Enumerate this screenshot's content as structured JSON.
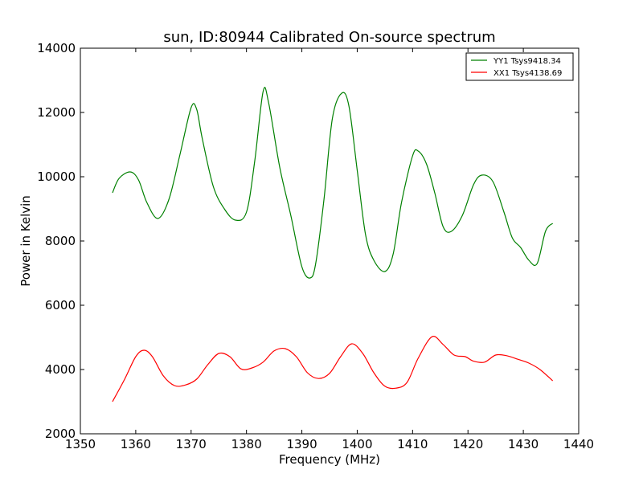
{
  "chart_data": {
    "type": "line",
    "title": "sun, ID:80944 Calibrated On-source spectrum",
    "xlabel": "Frequency (MHz)",
    "ylabel": "Power in Kelvin",
    "xlim": [
      1350,
      1440
    ],
    "ylim": [
      2000,
      14000
    ],
    "xticks": [
      1350,
      1360,
      1370,
      1380,
      1390,
      1400,
      1410,
      1420,
      1430,
      1440
    ],
    "yticks": [
      2000,
      4000,
      6000,
      8000,
      10000,
      12000,
      14000
    ],
    "xtick_labels": [
      "1350",
      "1360",
      "1370",
      "1380",
      "1390",
      "1400",
      "1410",
      "1420",
      "1430",
      "1440"
    ],
    "ytick_labels": [
      "2000",
      "4000",
      "6000",
      "8000",
      "10000",
      "12000",
      "14000"
    ],
    "grid": false,
    "legend_position": "top-right",
    "series": [
      {
        "name": "YY1 Tsys9418.34",
        "color": "#008000",
        "x": [
          1355.8,
          1357,
          1359,
          1360.5,
          1362,
          1364,
          1366,
          1368,
          1370,
          1371,
          1372,
          1374,
          1376,
          1378,
          1380,
          1381.5,
          1383,
          1384,
          1386,
          1388,
          1390,
          1391.5,
          1392.5,
          1394,
          1395.5,
          1397.2,
          1398.5,
          1400,
          1401.5,
          1403,
          1405,
          1406.5,
          1408,
          1410,
          1411,
          1412.5,
          1414,
          1415.5,
          1417,
          1419,
          1421,
          1422.5,
          1424.5,
          1426.5,
          1428,
          1429.5,
          1431,
          1432.5,
          1434,
          1435.3
        ],
        "y": [
          9500,
          9950,
          10150,
          9900,
          9200,
          8700,
          9300,
          10700,
          12150,
          12100,
          11200,
          9700,
          9000,
          8650,
          8900,
          10500,
          12650,
          12300,
          10300,
          8800,
          7200,
          6850,
          7300,
          9300,
          11800,
          12600,
          12200,
          10200,
          8200,
          7400,
          7050,
          7600,
          9200,
          10650,
          10800,
          10400,
          9500,
          8450,
          8300,
          8800,
          9750,
          10050,
          9850,
          8900,
          8100,
          7800,
          7400,
          7300,
          8300,
          8550
        ]
      },
      {
        "name": "XX1 Tsys4138.69",
        "color": "#ff0000",
        "x": [
          1355.8,
          1358,
          1360,
          1361.5,
          1363,
          1365,
          1367,
          1369,
          1371,
          1373,
          1375,
          1377,
          1379,
          1381,
          1383,
          1385,
          1387,
          1389,
          1391,
          1393,
          1395,
          1397,
          1399,
          1401,
          1403,
          1405,
          1407,
          1409,
          1411,
          1413.5,
          1415.5,
          1417.5,
          1419.5,
          1421,
          1423,
          1425,
          1427,
          1429,
          1431,
          1433,
          1435.3
        ],
        "y": [
          3000,
          3700,
          4400,
          4600,
          4400,
          3800,
          3500,
          3520,
          3700,
          4150,
          4500,
          4400,
          4020,
          4050,
          4230,
          4580,
          4650,
          4400,
          3900,
          3720,
          3880,
          4400,
          4800,
          4500,
          3900,
          3480,
          3420,
          3600,
          4350,
          5020,
          4780,
          4450,
          4400,
          4260,
          4230,
          4450,
          4430,
          4320,
          4200,
          4000,
          3650
        ]
      }
    ]
  }
}
